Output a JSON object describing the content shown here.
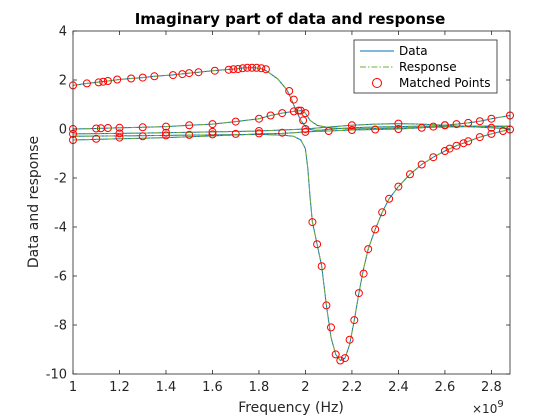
{
  "chart_data": {
    "type": "line",
    "title": "Imaginary part of data and response",
    "xlabel": "Frequency (Hz)",
    "ylabel": "Data and response",
    "x_exponent_label": "×10",
    "x_exponent_power": "9",
    "xlim": [
      1.0,
      2.88
    ],
    "ylim": [
      -10,
      4
    ],
    "xticks": [
      1,
      1.2,
      1.4,
      1.6,
      1.8,
      2,
      2.2,
      2.4,
      2.6,
      2.8
    ],
    "xtick_labels": [
      "1",
      "1.2",
      "1.4",
      "1.6",
      "1.8",
      "2",
      "2.2",
      "2.4",
      "2.6",
      "2.8"
    ],
    "yticks": [
      -10,
      -8,
      -6,
      -4,
      -2,
      0,
      2,
      4
    ],
    "ytick_labels": [
      "-10",
      "-8",
      "-6",
      "-4",
      "-2",
      "0",
      "2",
      "4"
    ],
    "legend": {
      "placement": "top-right",
      "entries": [
        {
          "label": "Data",
          "style": "solid",
          "color": "#0072BD"
        },
        {
          "label": "Response",
          "style": "dashdot",
          "color": "#77AC30"
        },
        {
          "label": "Matched Points",
          "style": "marker",
          "color": "#FF0000"
        }
      ]
    },
    "colors": {
      "data": "#0072BD",
      "response": "#77AC30",
      "matched": "#FF0000"
    },
    "series": [
      {
        "x": [
          1.0,
          1.06,
          1.1,
          1.12,
          1.15,
          1.2,
          1.25,
          1.3,
          1.35,
          1.42,
          1.46,
          1.5,
          1.54,
          1.6,
          1.65,
          1.68,
          1.7,
          1.72,
          1.74,
          1.76,
          1.78,
          1.8,
          1.82,
          1.84,
          1.88,
          1.92,
          1.94,
          1.96,
          1.98,
          2.0,
          2.02,
          2.04,
          2.06,
          2.1,
          2.15,
          2.2,
          2.3,
          2.4,
          2.5,
          2.6,
          2.7,
          2.8,
          2.88
        ],
        "values": [
          1.78,
          1.86,
          1.9,
          1.93,
          1.96,
          2.02,
          2.06,
          2.1,
          2.15,
          2.2,
          2.24,
          2.28,
          2.32,
          2.38,
          2.42,
          2.44,
          2.45,
          2.48,
          2.5,
          2.5,
          2.5,
          2.48,
          2.44,
          2.32,
          2.05,
          1.6,
          1.2,
          0.75,
          0.35,
          0.1,
          -0.02,
          -0.05,
          -0.05,
          -0.02,
          0.02,
          0.05,
          0.08,
          0.1,
          0.12,
          0.12,
          0.12,
          0.12,
          0.12
        ]
      },
      {
        "x": [
          1.0,
          1.1,
          1.2,
          1.3,
          1.4,
          1.5,
          1.6,
          1.7,
          1.8,
          1.85,
          1.9,
          1.95,
          1.98,
          2.0,
          2.02,
          2.05,
          2.1,
          2.15,
          2.2,
          2.3,
          2.4,
          2.5,
          2.6,
          2.7,
          2.8,
          2.88
        ],
        "values": [
          0.0,
          0.02,
          0.05,
          0.07,
          0.1,
          0.15,
          0.2,
          0.3,
          0.42,
          0.55,
          0.65,
          0.72,
          0.75,
          0.65,
          0.35,
          0.15,
          0.05,
          0.02,
          0.0,
          0.02,
          0.04,
          0.06,
          0.08,
          0.1,
          0.1,
          0.1
        ]
      },
      {
        "x": [
          1.0,
          1.2,
          1.4,
          1.6,
          1.8,
          1.9,
          1.95,
          1.98,
          2.0,
          2.01,
          2.02,
          2.03,
          2.05,
          2.07,
          2.09,
          2.11,
          2.13,
          2.15,
          2.17,
          2.19,
          2.21,
          2.23,
          2.25,
          2.27,
          2.3,
          2.33,
          2.36,
          2.4,
          2.45,
          2.5,
          2.55,
          2.6,
          2.65,
          2.7,
          2.75,
          2.8,
          2.85,
          2.88
        ],
        "values": [
          -0.3,
          -0.28,
          -0.26,
          -0.24,
          -0.22,
          -0.25,
          -0.3,
          -0.45,
          -0.8,
          -1.6,
          -2.8,
          -3.8,
          -4.7,
          -5.6,
          -7.2,
          -8.5,
          -9.2,
          -9.45,
          -9.35,
          -8.8,
          -7.8,
          -6.7,
          -5.7,
          -4.9,
          -4.1,
          -3.4,
          -2.85,
          -2.35,
          -1.85,
          -1.45,
          -1.15,
          -0.9,
          -0.68,
          -0.5,
          -0.33,
          -0.2,
          -0.08,
          -0.02
        ]
      },
      {
        "x": [
          1.0,
          1.2,
          1.4,
          1.6,
          1.8,
          1.9,
          1.95,
          2.0,
          2.05,
          2.1,
          2.15,
          2.2,
          2.3,
          2.4,
          2.5,
          2.55,
          2.6,
          2.65,
          2.7,
          2.75,
          2.8,
          2.88
        ],
        "values": [
          -0.45,
          -0.4,
          -0.35,
          -0.28,
          -0.2,
          -0.18,
          -0.15,
          -0.12,
          -0.1,
          -0.08,
          -0.06,
          -0.04,
          -0.02,
          0.0,
          0.05,
          0.1,
          0.15,
          0.2,
          0.25,
          0.32,
          0.42,
          0.55
        ]
      },
      {
        "x": [
          1.0,
          1.2,
          1.4,
          1.6,
          1.8,
          2.0,
          2.1,
          2.2,
          2.3,
          2.4,
          2.5,
          2.6,
          2.7,
          2.8,
          2.88
        ],
        "values": [
          -0.2,
          -0.18,
          -0.15,
          -0.12,
          -0.08,
          0.0,
          0.08,
          0.15,
          0.2,
          0.22,
          0.2,
          0.15,
          0.1,
          0.05,
          0.0
        ]
      }
    ],
    "matched_points": {
      "x": [
        1.0,
        1.06,
        1.11,
        1.13,
        1.15,
        1.19,
        1.25,
        1.3,
        1.35,
        1.43,
        1.47,
        1.5,
        1.54,
        1.61,
        1.67,
        1.69,
        1.71,
        1.73,
        1.75,
        1.77,
        1.79,
        1.81,
        1.83,
        1.93,
        1.95,
        1.97,
        1.99,
        1.0,
        1.1,
        1.12,
        1.15,
        1.2,
        1.3,
        1.4,
        1.5,
        1.6,
        1.7,
        1.8,
        1.85,
        1.9,
        1.95,
        1.98,
        2.0,
        2.03,
        2.05,
        2.07,
        2.09,
        2.11,
        2.13,
        2.15,
        2.17,
        2.19,
        2.21,
        2.23,
        2.25,
        2.27,
        2.3,
        2.33,
        2.36,
        2.4,
        2.45,
        2.5,
        2.55,
        2.6,
        2.62,
        2.65,
        2.68,
        2.7,
        2.75,
        2.8,
        2.85,
        2.88,
        1.0,
        1.1,
        1.2,
        1.3,
        1.4,
        1.5,
        1.6,
        1.7,
        1.8,
        1.9,
        2.0,
        2.1,
        2.2,
        2.3,
        2.4,
        2.5,
        2.55,
        2.6,
        2.65,
        2.7,
        2.75,
        2.8,
        2.88,
        1.0,
        1.2,
        1.4,
        1.6,
        1.8,
        2.0,
        2.2,
        2.4,
        2.6,
        2.8
      ],
      "y": [
        1.78,
        1.86,
        1.9,
        1.93,
        1.96,
        2.02,
        2.06,
        2.1,
        2.15,
        2.2,
        2.24,
        2.28,
        2.32,
        2.38,
        2.42,
        2.44,
        2.45,
        2.48,
        2.5,
        2.5,
        2.5,
        2.48,
        2.44,
        1.55,
        1.2,
        0.75,
        0.35,
        0.0,
        0.02,
        0.03,
        0.04,
        0.05,
        0.07,
        0.1,
        0.15,
        0.2,
        0.3,
        0.42,
        0.55,
        0.65,
        0.72,
        0.75,
        0.65,
        -3.8,
        -4.7,
        -5.6,
        -7.2,
        -8.1,
        -9.2,
        -9.45,
        -9.35,
        -8.6,
        -7.8,
        -6.7,
        -5.9,
        -4.9,
        -4.1,
        -3.4,
        -2.85,
        -2.35,
        -1.85,
        -1.45,
        -1.15,
        -0.9,
        -0.8,
        -0.68,
        -0.58,
        -0.5,
        -0.33,
        -0.2,
        -0.08,
        -0.02,
        -0.45,
        -0.4,
        -0.35,
        -0.3,
        -0.26,
        -0.24,
        -0.22,
        -0.2,
        -0.18,
        -0.15,
        -0.12,
        -0.08,
        -0.04,
        -0.02,
        0.0,
        0.05,
        0.1,
        0.15,
        0.2,
        0.25,
        0.32,
        0.42,
        0.55,
        -0.2,
        -0.18,
        -0.15,
        -0.12,
        -0.08,
        0.0,
        0.15,
        0.22,
        0.15,
        0.05
      ]
    }
  }
}
